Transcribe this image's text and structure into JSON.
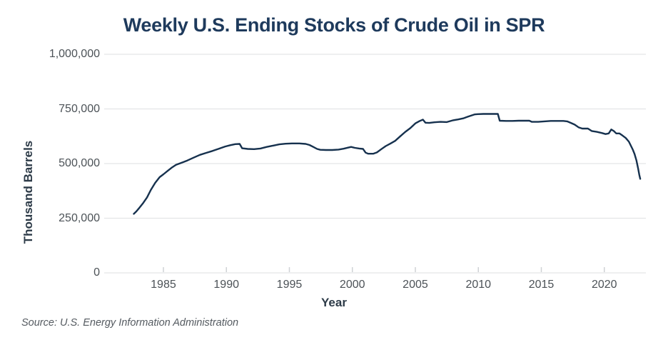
{
  "figure": {
    "title": "Weekly U.S. Ending Stocks of Crude Oil in SPR",
    "source": "Source: U.S. Energy Information Administration"
  },
  "chart_data": {
    "type": "line",
    "title": "Weekly U.S. Ending Stocks of Crude Oil in SPR",
    "xlabel": "Year",
    "ylabel": "Thousand Barrels",
    "source": "Source: U.S. Energy Information Administration",
    "legend_position": "none",
    "grid": "horizontal",
    "x_range": [
      1980.3,
      2023.3
    ],
    "y_range": [
      0,
      1000000
    ],
    "x_ticks": [
      1985,
      1990,
      1995,
      2000,
      2005,
      2010,
      2015,
      2020
    ],
    "y_ticks": [
      0,
      250000,
      500000,
      750000,
      1000000
    ],
    "y_tick_labels": [
      "0",
      "250,000",
      "500,000",
      "750,000",
      "1,000,000"
    ],
    "colors": {
      "line": "#16314e",
      "title": "#1e3a5c",
      "grid": "#e3e5e7",
      "tick_mark": "#cfd2d5",
      "tick_label": "#4c5257",
      "axis_label": "#2d3b48",
      "source": "#545a60"
    },
    "series": [
      {
        "name": "Weekly U.S. Ending Stocks of Crude Oil in SPR",
        "unit": "thousand barrels",
        "points": [
          [
            1982.65,
            270000
          ],
          [
            1982.85,
            281000
          ],
          [
            1983.1,
            298000
          ],
          [
            1983.4,
            320000
          ],
          [
            1983.7,
            345000
          ],
          [
            1984.0,
            379000
          ],
          [
            1984.35,
            412000
          ],
          [
            1984.7,
            438000
          ],
          [
            1985.0,
            451000
          ],
          [
            1985.35,
            467000
          ],
          [
            1985.7,
            483000
          ],
          [
            1986.0,
            494000
          ],
          [
            1986.4,
            503000
          ],
          [
            1986.9,
            514000
          ],
          [
            1987.4,
            527000
          ],
          [
            1987.9,
            540000
          ],
          [
            1988.4,
            549000
          ],
          [
            1988.9,
            558000
          ],
          [
            1989.4,
            568000
          ],
          [
            1989.9,
            578000
          ],
          [
            1990.3,
            584000
          ],
          [
            1990.7,
            589000
          ],
          [
            1991.05,
            590000
          ],
          [
            1991.25,
            570000
          ],
          [
            1991.7,
            567000
          ],
          [
            1992.2,
            566000
          ],
          [
            1992.7,
            569000
          ],
          [
            1993.2,
            576000
          ],
          [
            1993.7,
            582000
          ],
          [
            1994.2,
            588000
          ],
          [
            1994.7,
            591000
          ],
          [
            1995.2,
            592000
          ],
          [
            1995.8,
            592000
          ],
          [
            1996.3,
            590000
          ],
          [
            1996.6,
            585000
          ],
          [
            1996.9,
            576000
          ],
          [
            1997.2,
            567000
          ],
          [
            1997.45,
            563000
          ],
          [
            1997.9,
            562000
          ],
          [
            1998.4,
            562000
          ],
          [
            1998.9,
            564000
          ],
          [
            1999.3,
            568000
          ],
          [
            1999.65,
            573000
          ],
          [
            1999.9,
            576000
          ],
          [
            2000.2,
            572000
          ],
          [
            2000.55,
            569000
          ],
          [
            2000.85,
            567000
          ],
          [
            2001.05,
            550000
          ],
          [
            2001.25,
            545000
          ],
          [
            2001.65,
            545000
          ],
          [
            2001.95,
            551000
          ],
          [
            2002.3,
            566000
          ],
          [
            2002.65,
            580000
          ],
          [
            2003.0,
            591000
          ],
          [
            2003.4,
            604000
          ],
          [
            2003.8,
            625000
          ],
          [
            2004.2,
            645000
          ],
          [
            2004.6,
            662000
          ],
          [
            2005.0,
            684000
          ],
          [
            2005.35,
            695000
          ],
          [
            2005.6,
            701000
          ],
          [
            2005.8,
            687000
          ],
          [
            2006.1,
            686000
          ],
          [
            2006.5,
            689000
          ],
          [
            2007.0,
            691000
          ],
          [
            2007.5,
            690000
          ],
          [
            2008.0,
            698000
          ],
          [
            2008.4,
            702000
          ],
          [
            2008.8,
            707000
          ],
          [
            2009.1,
            713000
          ],
          [
            2009.4,
            719000
          ],
          [
            2009.7,
            725000
          ],
          [
            2009.95,
            726000
          ],
          [
            2010.4,
            727000
          ],
          [
            2010.9,
            727000
          ],
          [
            2011.3,
            727000
          ],
          [
            2011.55,
            727000
          ],
          [
            2011.7,
            696000
          ],
          [
            2012.2,
            695000
          ],
          [
            2012.7,
            695000
          ],
          [
            2013.2,
            696000
          ],
          [
            2013.7,
            696000
          ],
          [
            2014.05,
            696000
          ],
          [
            2014.25,
            691000
          ],
          [
            2014.75,
            691000
          ],
          [
            2015.25,
            693000
          ],
          [
            2015.75,
            695000
          ],
          [
            2016.25,
            695000
          ],
          [
            2016.75,
            695000
          ],
          [
            2017.05,
            693000
          ],
          [
            2017.35,
            686000
          ],
          [
            2017.65,
            678000
          ],
          [
            2017.95,
            666000
          ],
          [
            2018.25,
            660000
          ],
          [
            2018.7,
            660000
          ],
          [
            2019.0,
            649000
          ],
          [
            2019.4,
            645000
          ],
          [
            2019.8,
            640000
          ],
          [
            2020.1,
            635000
          ],
          [
            2020.35,
            638000
          ],
          [
            2020.55,
            656000
          ],
          [
            2020.75,
            649000
          ],
          [
            2020.95,
            638000
          ],
          [
            2021.2,
            638000
          ],
          [
            2021.45,
            628000
          ],
          [
            2021.7,
            617000
          ],
          [
            2021.95,
            600000
          ],
          [
            2022.1,
            583000
          ],
          [
            2022.25,
            565000
          ],
          [
            2022.4,
            544000
          ],
          [
            2022.55,
            514000
          ],
          [
            2022.68,
            478000
          ],
          [
            2022.78,
            448000
          ],
          [
            2022.85,
            430000
          ]
        ]
      }
    ]
  }
}
